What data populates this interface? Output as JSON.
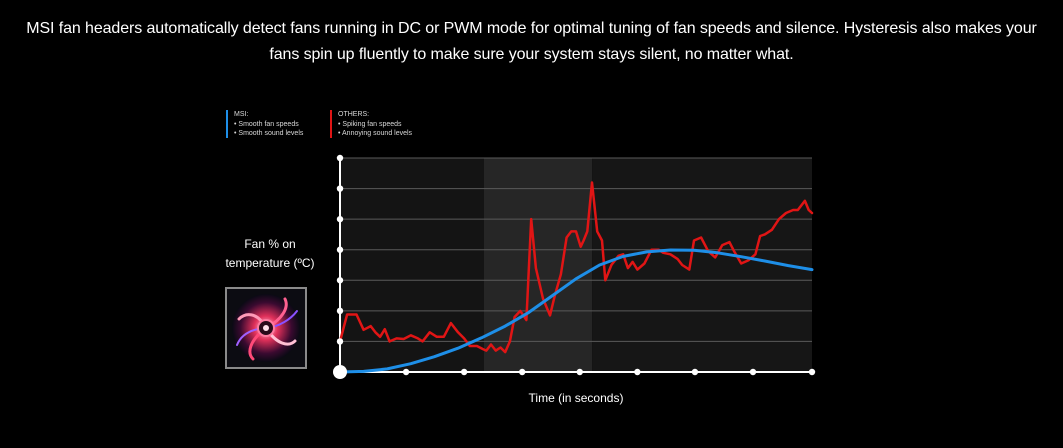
{
  "intro": {
    "line1": "MSI fan headers automatically detect fans running in DC or PWM mode for optimal tuning of fan speeds and silence. Hysteresis also makes your",
    "line2": "fans spin up fluently to make sure your system stays silent, no matter what."
  },
  "legend": {
    "msi": {
      "heading": "MSI:",
      "items": [
        "• Smooth fan speeds",
        "• Smooth sound levels"
      ],
      "color": "#1e8fe8"
    },
    "others": {
      "heading": "OTHERS:",
      "items": [
        "• Spiking fan speeds",
        "• Annoying sound levels"
      ],
      "color": "#e01515"
    }
  },
  "axis": {
    "ylabel_line1": "Fan % on",
    "ylabel_line2": "temperature (ºC)",
    "xlabel": "Time (in seconds)"
  },
  "fan_photo": {
    "icon": "glowing-fan-image"
  },
  "chart_data": {
    "type": "line",
    "title": "",
    "xlabel": "Time (in seconds)",
    "ylabel": "Fan % on temperature (ºC)",
    "xlim": [
      0,
      100
    ],
    "ylim": [
      0,
      7
    ],
    "x_ticks": [
      0,
      14,
      26.3,
      38.6,
      50.8,
      63,
      75.2,
      87.5,
      100
    ],
    "y_ticks": [
      0,
      1,
      2,
      3,
      4,
      5,
      6,
      7
    ],
    "grid": true,
    "legend": "top-left",
    "highlight_bands": [
      {
        "x0": 0,
        "x1": 30.5,
        "shade": "#141414"
      },
      {
        "x0": 30.5,
        "x1": 53.4,
        "shade": "#262626"
      },
      {
        "x0": 53.4,
        "x1": 100,
        "shade": "#161616"
      }
    ],
    "series": [
      {
        "name": "MSI",
        "color": "#1e8fe8",
        "x": [
          0,
          5,
          10,
          15,
          20,
          25,
          30,
          35,
          40,
          45,
          50,
          55,
          60,
          65,
          70,
          75,
          80,
          85,
          90,
          95,
          100
        ],
        "y": [
          0,
          0.02,
          0.1,
          0.27,
          0.5,
          0.78,
          1.12,
          1.5,
          1.95,
          2.5,
          3.05,
          3.5,
          3.78,
          3.93,
          3.99,
          3.98,
          3.9,
          3.77,
          3.63,
          3.48,
          3.35
        ]
      },
      {
        "name": "OTHERS",
        "color": "#e01515",
        "x": [
          0,
          1.5,
          3.5,
          5,
          6.5,
          7.5,
          8.5,
          9.5,
          10.5,
          12,
          13.5,
          15,
          16.5,
          17.5,
          19,
          20.5,
          22,
          23.5,
          25,
          26.3,
          27.5,
          29,
          30.3,
          31,
          32,
          33,
          34,
          35,
          36,
          37,
          38.2,
          39.5,
          40.5,
          41.5,
          43,
          44.5,
          45.5,
          46.8,
          48,
          49,
          50,
          51,
          51.6,
          52.4,
          53.4,
          54.5,
          55.5,
          56.2,
          57.5,
          59,
          60,
          61,
          62,
          63,
          64.5,
          66,
          67.5,
          68.5,
          70,
          71.5,
          72.5,
          74,
          75,
          76.5,
          78,
          79.5,
          81,
          82.5,
          83.5,
          85,
          86.5,
          88,
          89,
          90,
          91.5,
          93,
          94.5,
          96,
          97,
          98.5,
          99.3,
          100
        ],
        "y": [
          1,
          1.88,
          1.88,
          1.38,
          1.5,
          1.3,
          1.15,
          1.4,
          1.0,
          1.1,
          1.08,
          1.2,
          1.1,
          1.0,
          1.3,
          1.15,
          1.15,
          1.6,
          1.3,
          1.1,
          0.85,
          0.85,
          0.75,
          0.7,
          0.9,
          0.7,
          0.8,
          0.65,
          1.0,
          1.8,
          2.0,
          1.7,
          5.0,
          3.4,
          2.4,
          1.85,
          2.5,
          3.2,
          4.4,
          4.6,
          4.6,
          4.1,
          4.3,
          4.6,
          6.2,
          4.6,
          4.3,
          3.0,
          3.5,
          3.8,
          3.85,
          3.4,
          3.6,
          3.35,
          3.55,
          4.0,
          4.0,
          3.9,
          3.85,
          3.7,
          3.5,
          3.35,
          4.3,
          4.4,
          3.95,
          3.75,
          4.15,
          4.25,
          3.95,
          3.55,
          3.65,
          3.85,
          4.45,
          4.5,
          4.65,
          5.0,
          5.2,
          5.3,
          5.3,
          5.6,
          5.3,
          5.2
        ]
      }
    ]
  }
}
